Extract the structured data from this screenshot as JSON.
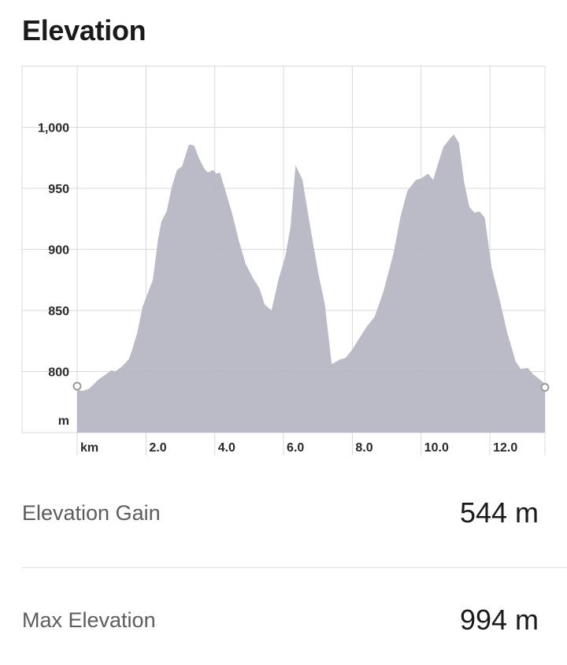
{
  "header": {
    "title": "Elevation"
  },
  "colors": {
    "area_fill": "#b5b5c3",
    "grid": "#d9d9d9",
    "marker": "#9a9a9a"
  },
  "chart_data": {
    "type": "area",
    "ylabel": "m",
    "xlabel": "km",
    "ylim": [
      750,
      1050
    ],
    "xlim": [
      0,
      13.6
    ],
    "yticks": [
      {
        "value": 1000,
        "label": "1,000"
      },
      {
        "value": 950,
        "label": "950"
      },
      {
        "value": 900,
        "label": "900"
      },
      {
        "value": 850,
        "label": "850"
      },
      {
        "value": 800,
        "label": "800"
      }
    ],
    "xticks": [
      {
        "value": 2.0,
        "label": "2.0"
      },
      {
        "value": 4.0,
        "label": "4.0"
      },
      {
        "value": 6.0,
        "label": "6.0"
      },
      {
        "value": 8.0,
        "label": "8.0"
      },
      {
        "value": 10.0,
        "label": "10.0"
      },
      {
        "value": 12.0,
        "label": "12.0"
      }
    ],
    "grid": true,
    "series": [
      {
        "x": [
          0.0,
          0.15,
          0.35,
          0.5,
          0.6,
          0.8,
          1.0,
          1.1,
          1.3,
          1.5,
          1.6,
          1.75,
          1.9,
          2.2,
          2.35,
          2.45,
          2.6,
          2.75,
          2.9,
          3.05,
          3.25,
          3.4,
          3.55,
          3.7,
          3.8,
          3.95,
          4.05,
          4.15,
          4.3,
          4.5,
          4.7,
          4.9,
          5.1,
          5.3,
          5.45,
          5.65,
          5.85,
          6.05,
          6.2,
          6.35,
          6.55,
          6.75,
          7.0,
          7.2,
          7.4,
          7.65,
          7.8,
          8.0,
          8.2,
          8.4,
          8.65,
          8.9,
          9.2,
          9.4,
          9.6,
          9.85,
          10.0,
          10.2,
          10.35,
          10.5,
          10.65,
          10.85,
          10.95,
          11.1,
          11.25,
          11.4,
          11.55,
          11.7,
          11.85,
          12.05,
          12.3,
          12.5,
          12.75,
          12.9,
          13.1,
          13.25,
          13.6
        ],
        "y": [
          785,
          784,
          786,
          790,
          793,
          797,
          801,
          800,
          804,
          810,
          818,
          832,
          853,
          875,
          908,
          923,
          931,
          951,
          965,
          968,
          986,
          985,
          974,
          966,
          963,
          965,
          962,
          963,
          949,
          930,
          907,
          888,
          877,
          868,
          855,
          850,
          875,
          894,
          918,
          969,
          957,
          923,
          882,
          855,
          806,
          810,
          811,
          818,
          827,
          836,
          845,
          865,
          897,
          927,
          948,
          957,
          958,
          962,
          957,
          971,
          984,
          991,
          994,
          987,
          955,
          935,
          930,
          931,
          926,
          885,
          857,
          832,
          808,
          802,
          803,
          798,
          790
        ]
      }
    ],
    "markers": [
      {
        "x": 0.0,
        "y": 788
      },
      {
        "x": 13.6,
        "y": 787
      }
    ]
  },
  "stats": [
    {
      "label": "Elevation Gain",
      "value": "544 m"
    },
    {
      "label": "Max Elevation",
      "value": "994 m"
    }
  ]
}
